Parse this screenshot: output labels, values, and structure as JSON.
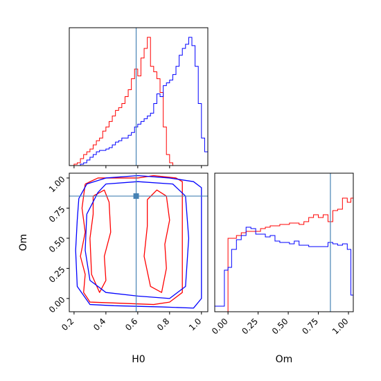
{
  "chart_data": {
    "type": "corner",
    "truth_color": "#4682b4",
    "series": [
      {
        "color": "#ff0000"
      },
      {
        "color": "#0000ff"
      }
    ],
    "parameters": [
      {
        "name": "H0",
        "range": [
          0.17,
          1.04
        ],
        "ticks": [
          0.2,
          0.4,
          0.6,
          0.8,
          1.0
        ],
        "tick_labels": [
          "0.2",
          "0.4",
          "0.6",
          "0.8",
          "1.0"
        ],
        "truth": 0.59
      },
      {
        "name": "Om",
        "range": [
          -0.11,
          1.04
        ],
        "ticks": [
          0.0,
          0.25,
          0.5,
          0.75,
          1.0
        ],
        "tick_labels": [
          "0.00",
          "0.25",
          "0.50",
          "0.75",
          "1.00"
        ],
        "truth": 0.85
      }
    ],
    "xlabel_bottom_left": "H0",
    "xlabel_bottom_right": "Om",
    "ylabel_left": "Om",
    "histogram_H0": {
      "ylim": [
        0,
        1.0
      ],
      "bin_edges": [
        0.17,
        0.2,
        0.22,
        0.24,
        0.26,
        0.28,
        0.3,
        0.32,
        0.34,
        0.36,
        0.38,
        0.4,
        0.42,
        0.44,
        0.46,
        0.48,
        0.5,
        0.52,
        0.54,
        0.56,
        0.58,
        0.6,
        0.62,
        0.64,
        0.66,
        0.68,
        0.7,
        0.72,
        0.74,
        0.76,
        0.78,
        0.8,
        0.82,
        0.84,
        0.86,
        0.88,
        0.9,
        0.92,
        0.94,
        0.96,
        0.98,
        1.0,
        1.02,
        1.04
      ],
      "series_values": [
        [
          0,
          0.01,
          0.02,
          0.05,
          0.08,
          0.1,
          0.12,
          0.15,
          0.18,
          0.2,
          0.25,
          0.28,
          0.32,
          0.36,
          0.4,
          0.42,
          0.45,
          0.5,
          0.55,
          0.63,
          0.7,
          0.65,
          0.78,
          0.85,
          0.93,
          0.72,
          0.68,
          0.63,
          0.53,
          0.28,
          0.08,
          0.02,
          0,
          0,
          0,
          0,
          0,
          0,
          0,
          0,
          0,
          0,
          0
        ],
        [
          0,
          0,
          0,
          0.01,
          0.02,
          0.04,
          0.06,
          0.08,
          0.1,
          0.11,
          0.11,
          0.12,
          0.13,
          0.15,
          0.17,
          0.18,
          0.2,
          0.2,
          0.22,
          0.24,
          0.28,
          0.3,
          0.32,
          0.34,
          0.36,
          0.38,
          0.45,
          0.52,
          0.5,
          0.58,
          0.6,
          0.62,
          0.66,
          0.72,
          0.8,
          0.85,
          0.88,
          0.93,
          0.87,
          0.72,
          0.45,
          0.2,
          0.1
        ]
      ]
    },
    "histogram_Om": {
      "ylim": [
        0,
        1.0
      ],
      "bin_edges": [
        -0.11,
        -0.07,
        -0.03,
        0.0,
        0.03,
        0.07,
        0.11,
        0.15,
        0.19,
        0.23,
        0.27,
        0.31,
        0.35,
        0.39,
        0.43,
        0.47,
        0.51,
        0.55,
        0.59,
        0.63,
        0.67,
        0.71,
        0.75,
        0.79,
        0.83,
        0.87,
        0.91,
        0.95,
        0.99,
        1.02,
        1.04
      ],
      "series_values": [
        [
          0,
          0,
          0,
          0.53,
          0.53,
          0.55,
          0.57,
          0.58,
          0.58,
          0.58,
          0.6,
          0.61,
          0.62,
          0.62,
          0.63,
          0.63,
          0.64,
          0.64,
          0.63,
          0.65,
          0.68,
          0.7,
          0.68,
          0.7,
          0.65,
          0.73,
          0.74,
          0.82,
          0.79,
          0.82
        ],
        [
          0.04,
          0.04,
          0.3,
          0.32,
          0.45,
          0.52,
          0.55,
          0.61,
          0.6,
          0.56,
          0.56,
          0.54,
          0.55,
          0.51,
          0.5,
          0.5,
          0.49,
          0.51,
          0.48,
          0.48,
          0.47,
          0.47,
          0.47,
          0.47,
          0.5,
          0.49,
          0.48,
          0.49,
          0.45,
          0.12
        ]
      ]
    },
    "contours": [
      {
        "series": 0,
        "levels": [
          [
            [
              0.27,
              0.95
            ],
            [
              0.35,
              1.0
            ],
            [
              0.45,
              1.0
            ],
            [
              0.6,
              1.0
            ],
            [
              0.7,
              1.02
            ],
            [
              0.84,
              1.0
            ],
            [
              0.88,
              0.97
            ],
            [
              0.88,
              0.05
            ],
            [
              0.8,
              -0.03
            ],
            [
              0.7,
              -0.05
            ],
            [
              0.5,
              -0.04
            ],
            [
              0.3,
              -0.03
            ],
            [
              0.26,
              0.05
            ],
            [
              0.27,
              0.2
            ],
            [
              0.24,
              0.35
            ],
            [
              0.27,
              0.55
            ],
            [
              0.25,
              0.75
            ],
            [
              0.27,
              0.95
            ]
          ],
          [
            [
              0.32,
              0.85
            ],
            [
              0.39,
              0.9
            ],
            [
              0.42,
              0.8
            ],
            [
              0.43,
              0.55
            ],
            [
              0.39,
              0.35
            ],
            [
              0.4,
              0.15
            ],
            [
              0.36,
              0.05
            ],
            [
              0.31,
              0.2
            ],
            [
              0.3,
              0.5
            ],
            [
              0.32,
              0.7
            ],
            [
              0.32,
              0.85
            ]
          ],
          [
            [
              0.66,
              0.82
            ],
            [
              0.72,
              0.9
            ],
            [
              0.78,
              0.85
            ],
            [
              0.8,
              0.65
            ],
            [
              0.77,
              0.45
            ],
            [
              0.78,
              0.25
            ],
            [
              0.75,
              0.05
            ],
            [
              0.68,
              0.1
            ],
            [
              0.64,
              0.35
            ],
            [
              0.66,
              0.6
            ],
            [
              0.66,
              0.82
            ]
          ]
        ]
      },
      {
        "series": 1,
        "levels": [
          [
            [
              0.23,
              0.83
            ],
            [
              0.28,
              0.95
            ],
            [
              0.4,
              1.0
            ],
            [
              0.6,
              1.02
            ],
            [
              0.8,
              1.0
            ],
            [
              0.95,
              0.97
            ],
            [
              1.0,
              0.92
            ],
            [
              1.0,
              0.0
            ],
            [
              0.95,
              -0.08
            ],
            [
              0.75,
              -0.07
            ],
            [
              0.45,
              -0.06
            ],
            [
              0.3,
              -0.05
            ],
            [
              0.22,
              0.1
            ],
            [
              0.21,
              0.4
            ],
            [
              0.22,
              0.65
            ],
            [
              0.23,
              0.83
            ]
          ],
          [
            [
              0.28,
              0.7
            ],
            [
              0.35,
              0.88
            ],
            [
              0.4,
              0.95
            ],
            [
              0.6,
              0.97
            ],
            [
              0.82,
              0.95
            ],
            [
              0.9,
              0.85
            ],
            [
              0.92,
              0.5
            ],
            [
              0.9,
              0.1
            ],
            [
              0.8,
              0.0
            ],
            [
              0.6,
              0.02
            ],
            [
              0.4,
              0.05
            ],
            [
              0.3,
              0.15
            ],
            [
              0.27,
              0.4
            ],
            [
              0.28,
              0.7
            ]
          ]
        ]
      }
    ]
  }
}
